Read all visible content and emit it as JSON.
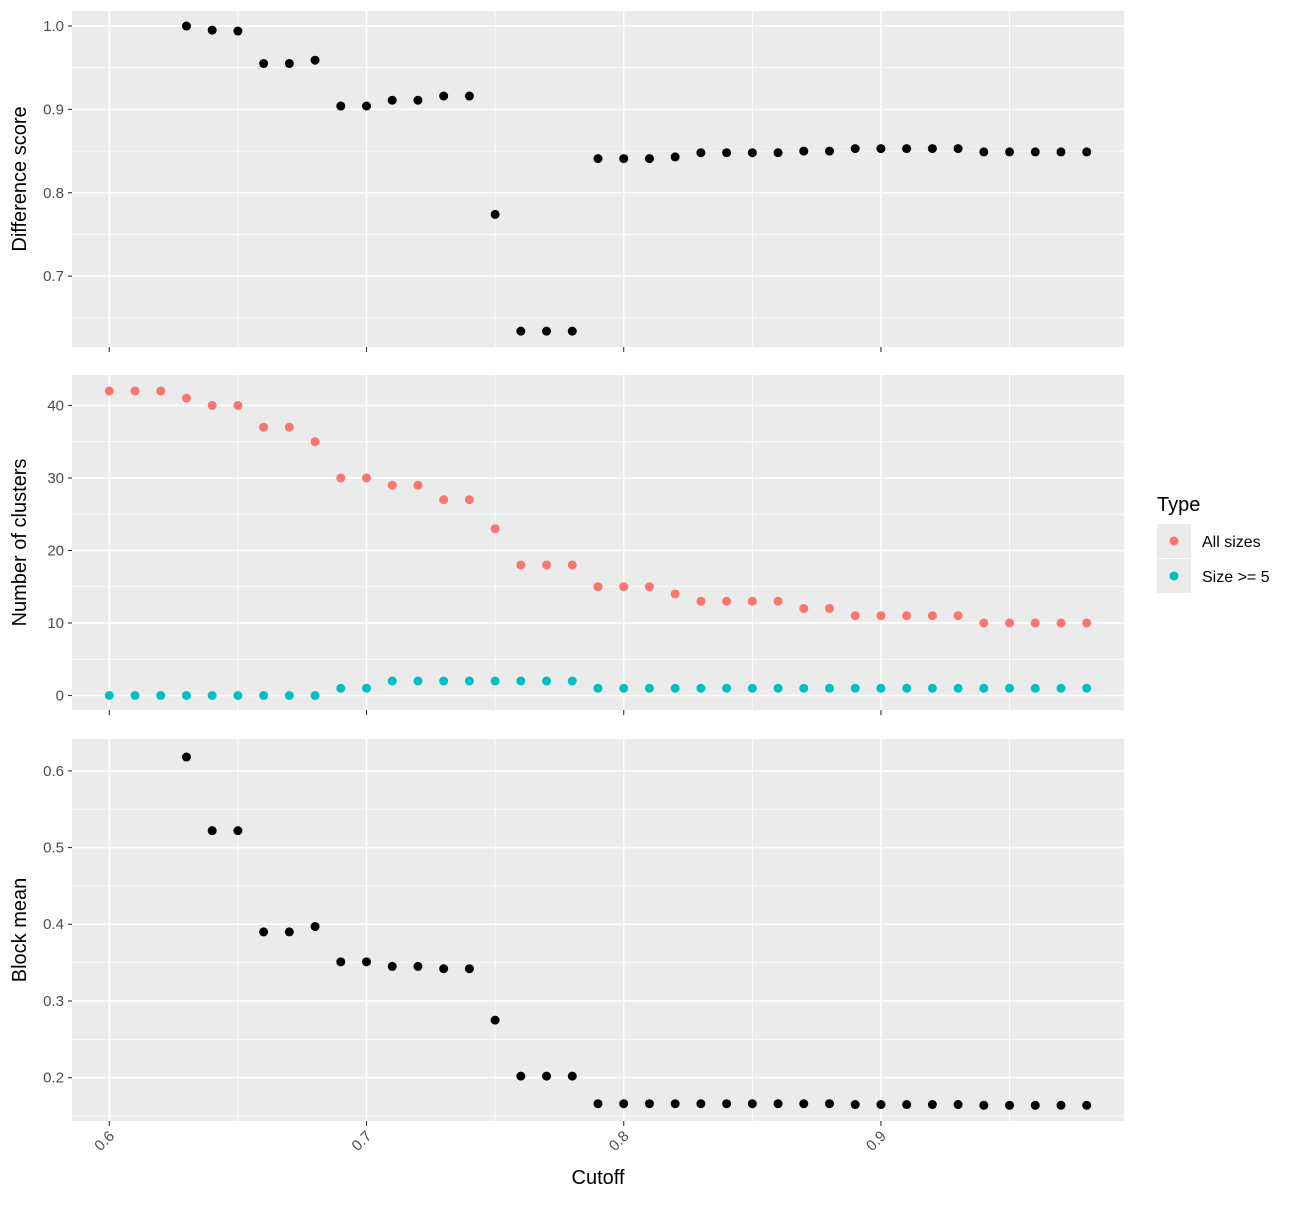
{
  "chart_data": {
    "type": "scatter",
    "xlabel": "Cutoff",
    "x_ticks": [
      "0.6",
      "0.7",
      "0.8",
      "0.9"
    ],
    "x_tick_values": [
      0.6,
      0.7,
      0.8,
      0.9
    ],
    "xlim": [
      0.5855,
      0.9945
    ],
    "grid": true,
    "legend": {
      "title": "Type",
      "position": "right",
      "entries": [
        {
          "label": "All sizes",
          "color": "#F8766D"
        },
        {
          "label": "Size >= 5",
          "color": "#00BFC4"
        }
      ]
    },
    "panels": [
      {
        "ylabel": "Difference score",
        "ylim": [
          0.615,
          1.018
        ],
        "y_ticks": [
          "0.7",
          "0.8",
          "0.9",
          "1.0"
        ],
        "y_tick_values": [
          0.7,
          0.8,
          0.9,
          1.0
        ],
        "series": [
          {
            "color": "#000000",
            "x": [
              0.63,
              0.64,
              0.65,
              0.66,
              0.67,
              0.68,
              0.69,
              0.7,
              0.71,
              0.72,
              0.73,
              0.74,
              0.75,
              0.76,
              0.77,
              0.78,
              0.79,
              0.8,
              0.81,
              0.82,
              0.83,
              0.84,
              0.85,
              0.86,
              0.87,
              0.88,
              0.89,
              0.9,
              0.91,
              0.92,
              0.93,
              0.94,
              0.95,
              0.96,
              0.97,
              0.98
            ],
            "y": [
              1.0,
              0.995,
              0.994,
              0.955,
              0.955,
              0.959,
              0.904,
              0.904,
              0.911,
              0.911,
              0.916,
              0.916,
              0.774,
              0.634,
              0.634,
              0.634,
              0.841,
              0.841,
              0.841,
              0.843,
              0.848,
              0.848,
              0.848,
              0.848,
              0.85,
              0.85,
              0.853,
              0.853,
              0.853,
              0.853,
              0.853,
              0.849,
              0.849,
              0.849,
              0.849,
              0.849
            ]
          }
        ]
      },
      {
        "ylabel": "Number of clusters",
        "ylim": [
          -2,
          44.2
        ],
        "y_ticks": [
          "0",
          "10",
          "20",
          "30",
          "40"
        ],
        "y_tick_values": [
          0,
          10,
          20,
          30,
          40
        ],
        "series": [
          {
            "name": "All sizes",
            "color": "#F8766D",
            "x": [
              0.6,
              0.61,
              0.62,
              0.63,
              0.64,
              0.65,
              0.66,
              0.67,
              0.68,
              0.69,
              0.7,
              0.71,
              0.72,
              0.73,
              0.74,
              0.75,
              0.76,
              0.77,
              0.78,
              0.79,
              0.8,
              0.81,
              0.82,
              0.83,
              0.84,
              0.85,
              0.86,
              0.87,
              0.88,
              0.89,
              0.9,
              0.91,
              0.92,
              0.93,
              0.94,
              0.95,
              0.96,
              0.97,
              0.98
            ],
            "y": [
              42,
              42,
              42,
              41,
              40,
              40,
              37,
              37,
              35,
              30,
              30,
              29,
              29,
              27,
              27,
              23,
              18,
              18,
              18,
              15,
              15,
              15,
              14,
              13,
              13,
              13,
              13,
              12,
              12,
              11,
              11,
              11,
              11,
              11,
              10,
              10,
              10,
              10,
              10
            ]
          },
          {
            "name": "Size >= 5",
            "color": "#00BFC4",
            "x": [
              0.6,
              0.61,
              0.62,
              0.63,
              0.64,
              0.65,
              0.66,
              0.67,
              0.68,
              0.69,
              0.7,
              0.71,
              0.72,
              0.73,
              0.74,
              0.75,
              0.76,
              0.77,
              0.78,
              0.79,
              0.8,
              0.81,
              0.82,
              0.83,
              0.84,
              0.85,
              0.86,
              0.87,
              0.88,
              0.89,
              0.9,
              0.91,
              0.92,
              0.93,
              0.94,
              0.95,
              0.96,
              0.97,
              0.98
            ],
            "y": [
              0,
              0,
              0,
              0,
              0,
              0,
              0,
              0,
              0,
              1,
              1,
              2,
              2,
              2,
              2,
              2,
              2,
              2,
              2,
              1,
              1,
              1,
              1,
              1,
              1,
              1,
              1,
              1,
              1,
              1,
              1,
              1,
              1,
              1,
              1,
              1,
              1,
              1,
              1
            ]
          }
        ]
      },
      {
        "ylabel": "Block mean",
        "ylim": [
          0.1435,
          0.6415
        ],
        "y_ticks": [
          "0.2",
          "0.3",
          "0.4",
          "0.5",
          "0.6"
        ],
        "y_tick_values": [
          0.2,
          0.3,
          0.4,
          0.5,
          0.6
        ],
        "series": [
          {
            "color": "#000000",
            "x": [
              0.63,
              0.64,
              0.65,
              0.66,
              0.67,
              0.68,
              0.69,
              0.7,
              0.71,
              0.72,
              0.73,
              0.74,
              0.75,
              0.76,
              0.77,
              0.78,
              0.79,
              0.8,
              0.81,
              0.82,
              0.83,
              0.84,
              0.85,
              0.86,
              0.87,
              0.88,
              0.89,
              0.9,
              0.91,
              0.92,
              0.93,
              0.94,
              0.95,
              0.96,
              0.97,
              0.98
            ],
            "y": [
              0.618,
              0.522,
              0.522,
              0.39,
              0.39,
              0.397,
              0.351,
              0.351,
              0.345,
              0.345,
              0.342,
              0.342,
              0.275,
              0.202,
              0.202,
              0.202,
              0.166,
              0.166,
              0.166,
              0.166,
              0.166,
              0.166,
              0.166,
              0.166,
              0.166,
              0.166,
              0.165,
              0.165,
              0.165,
              0.165,
              0.165,
              0.164,
              0.164,
              0.164,
              0.164,
              0.164
            ]
          }
        ]
      }
    ]
  }
}
